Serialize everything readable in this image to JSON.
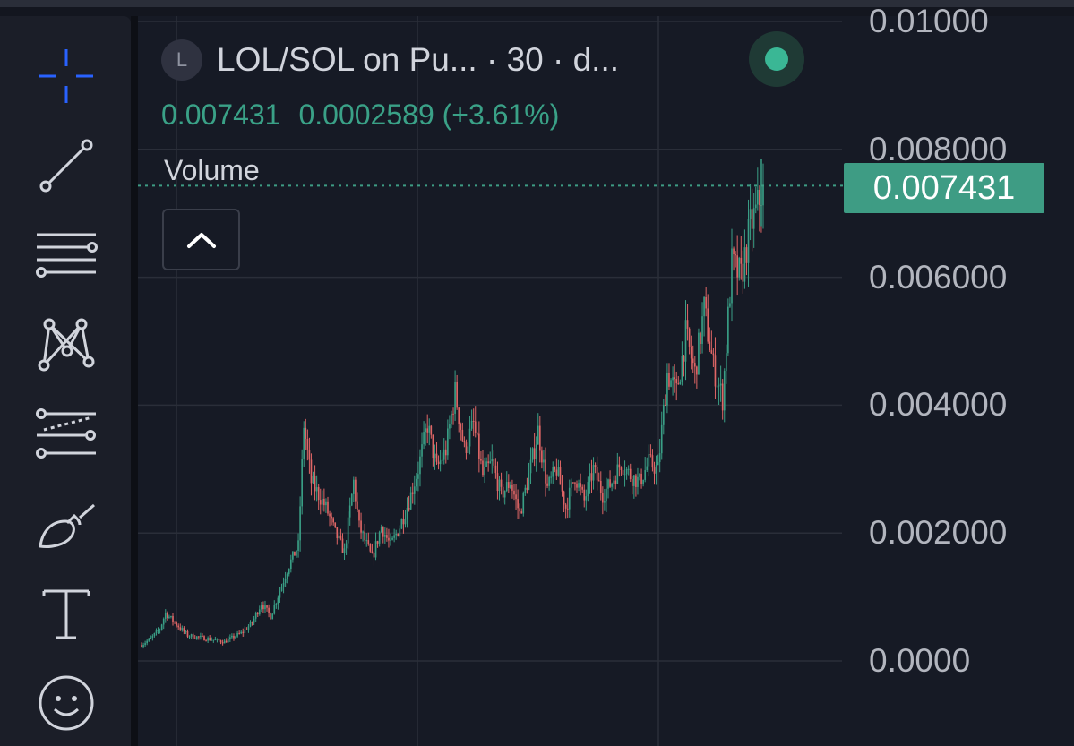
{
  "header": {
    "symbol_badge": "L",
    "title": "LOL/SOL on Pu... · 30 · d...",
    "last_price": "0.007431",
    "change_abs": "0.0002589",
    "change_pct": "(+3.61%)"
  },
  "volume_label": "Volume",
  "current_price_label": "0.007431",
  "colors": {
    "up": "#3a9f86",
    "down": "#e06666",
    "accent": "#2962ff",
    "status": "#3ab795",
    "price_label_bg": "#3e9c84"
  },
  "toolbar": {
    "tools": [
      "crosshair-icon",
      "trend-line-icon",
      "horizontal-lines-icon",
      "pattern-icon",
      "prediction-icon",
      "brush-icon",
      "text-icon",
      "emoji-icon"
    ]
  },
  "chart_data": {
    "type": "candlestick",
    "interval": "30",
    "ylim": [
      0,
      0.01
    ],
    "y_ticks": [
      "0.01000",
      "0.008000",
      "0.006000",
      "0.004000",
      "0.002000",
      "0.0000"
    ],
    "last_value": 0.007431,
    "close_path": [
      [
        0,
        0.00025
      ],
      [
        5,
        0.00035
      ],
      [
        10,
        0.0005
      ],
      [
        13,
        0.00075
      ],
      [
        18,
        0.0006
      ],
      [
        25,
        0.0004
      ],
      [
        35,
        0.00035
      ],
      [
        45,
        0.0003
      ],
      [
        55,
        0.00045
      ],
      [
        60,
        0.0006
      ],
      [
        65,
        0.0009
      ],
      [
        70,
        0.0007
      ],
      [
        75,
        0.0011
      ],
      [
        80,
        0.0015
      ],
      [
        85,
        0.0018
      ],
      [
        88,
        0.0037
      ],
      [
        92,
        0.0028
      ],
      [
        100,
        0.0024
      ],
      [
        105,
        0.002
      ],
      [
        110,
        0.0017
      ],
      [
        115,
        0.0028
      ],
      [
        118,
        0.0021
      ],
      [
        125,
        0.0016
      ],
      [
        130,
        0.0021
      ],
      [
        135,
        0.0018
      ],
      [
        140,
        0.0021
      ],
      [
        145,
        0.0025
      ],
      [
        150,
        0.003
      ],
      [
        155,
        0.0037
      ],
      [
        160,
        0.003
      ],
      [
        165,
        0.0033
      ],
      [
        170,
        0.0042
      ],
      [
        175,
        0.0033
      ],
      [
        180,
        0.0037
      ],
      [
        185,
        0.0029
      ],
      [
        190,
        0.0031
      ],
      [
        195,
        0.0026
      ],
      [
        200,
        0.0028
      ],
      [
        205,
        0.0023
      ],
      [
        210,
        0.0029
      ],
      [
        215,
        0.0036
      ],
      [
        220,
        0.0027
      ],
      [
        225,
        0.003
      ],
      [
        230,
        0.0024
      ],
      [
        235,
        0.0029
      ],
      [
        240,
        0.0025
      ],
      [
        245,
        0.003
      ],
      [
        250,
        0.0026
      ],
      [
        255,
        0.0028
      ],
      [
        260,
        0.0031
      ],
      [
        265,
        0.0029
      ],
      [
        270,
        0.0028
      ],
      [
        275,
        0.0031
      ],
      [
        280,
        0.003
      ],
      [
        285,
        0.0045
      ],
      [
        290,
        0.0042
      ],
      [
        295,
        0.0051
      ],
      [
        300,
        0.0045
      ],
      [
        305,
        0.0055
      ],
      [
        310,
        0.0046
      ],
      [
        315,
        0.0041
      ],
      [
        320,
        0.0062
      ],
      [
        325,
        0.006
      ],
      [
        330,
        0.0068
      ],
      [
        333,
        0.007
      ],
      [
        337,
        0.00743
      ]
    ]
  }
}
